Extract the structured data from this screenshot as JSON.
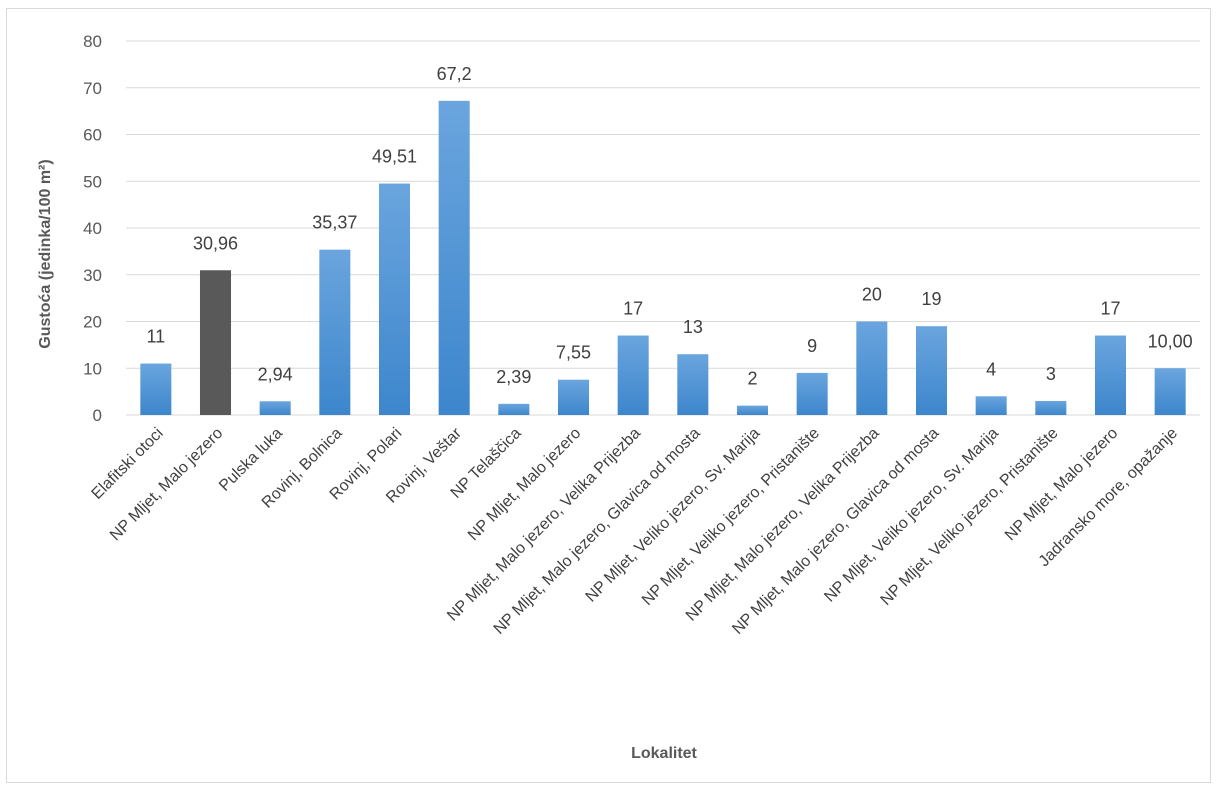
{
  "chart_data": {
    "type": "bar",
    "title": "",
    "xlabel": "Lokalitet",
    "ylabel": "Gustoća (jedinka/100 m²)",
    "ylim": [
      0,
      80
    ],
    "yticks": [
      0,
      10,
      20,
      30,
      40,
      50,
      60,
      70,
      80
    ],
    "grid": true,
    "legend": "none",
    "categories": [
      "Elafitski otoci",
      "NP Mljet, Malo jezero",
      "Pulska luka",
      "Rovinj, Bolnica",
      "Rovinj, Polari",
      "Rovinj, Veštar",
      "NP Telaščica",
      "NP Mljet, Malo jezero",
      "NP Mljet, Malo jezero, Velika Prijezba",
      "NP Mljet, Malo jezero, Glavica od mosta",
      "NP Mljet, Veliko jezero, Sv. Marija",
      "NP Mljet, Veliko jezero, Pristanište",
      "NP Mljet, Malo jezero, Velika Prijezba",
      "NP Mljet, Malo jezero, Glavica od mosta",
      "NP Mljet, Veliko jezero, Sv. Marija",
      "NP Mljet, Veliko jezero, Pristanište",
      "NP Mljet, Malo jezero",
      "Jadransko more, opažanje"
    ],
    "values": [
      11,
      30.96,
      2.94,
      35.37,
      49.51,
      67.2,
      2.39,
      7.55,
      17,
      13,
      2,
      9,
      20,
      19,
      4,
      3,
      17,
      10.0
    ],
    "data_labels": [
      "11",
      "30,96",
      "2,94",
      "35,37",
      "49,51",
      "67,2",
      "2,39",
      "7,55",
      "17",
      "13",
      "2",
      "9",
      "20",
      "19",
      "4",
      "3",
      "17",
      "10,00"
    ],
    "colors": {
      "default_bar_top": "#6aa5de",
      "default_bar_bottom": "#3d86cc",
      "highlight_bar": "#595959",
      "gridline": "#d9d9d9"
    },
    "highlight_index": 1
  }
}
